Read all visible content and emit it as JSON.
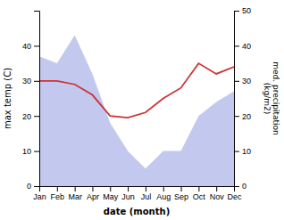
{
  "chart_data": {
    "type": "line",
    "xlabel": "date (month)",
    "ylabel": "max temp (C)",
    "y2label": "med. precipitation\n(kg/m2)",
    "categories": [
      "Jan",
      "Feb",
      "Mar",
      "Apr",
      "May",
      "Jun",
      "Jul",
      "Aug",
      "Sep",
      "Oct",
      "Nov",
      "Dec"
    ],
    "series": [
      {
        "type": "area",
        "axis": "y2",
        "color": "#aab0e8",
        "values": [
          37,
          35,
          43,
          32,
          18,
          10,
          5,
          10,
          10,
          20,
          24,
          27
        ]
      },
      {
        "type": "line",
        "color": "#cc3333",
        "values": [
          30,
          30,
          29,
          26,
          20,
          19.5,
          21,
          25,
          28,
          35,
          32,
          34
        ]
      }
    ],
    "ylim": [
      0,
      50
    ],
    "yticks": [
      0,
      10,
      20,
      30,
      40
    ],
    "y2lim": [
      0,
      50
    ],
    "y2ticks": [
      0,
      10,
      20,
      30,
      40,
      50
    ],
    "grid": false
  }
}
